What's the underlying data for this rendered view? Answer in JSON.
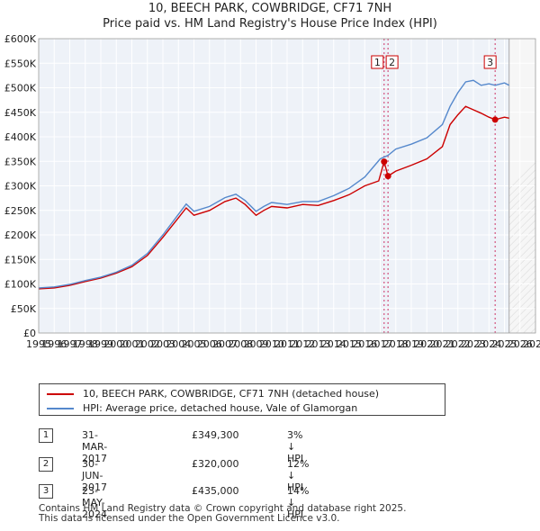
{
  "chart_data": {
    "type": "line",
    "title": "10, BEECH PARK, COWBRIDGE, CF71 7NH",
    "subtitle": "Price paid vs. HM Land Registry's House Price Index (HPI)",
    "x_ticks": [
      "1995",
      "1996",
      "1997",
      "1998",
      "1999",
      "2000",
      "2001",
      "2002",
      "2003",
      "2004",
      "2005",
      "2006",
      "2007",
      "2008",
      "2009",
      "2010",
      "2011",
      "2012",
      "2013",
      "2014",
      "2015",
      "2016",
      "2017",
      "2018",
      "2019",
      "2020",
      "2021",
      "2022",
      "2023",
      "2024",
      "2025",
      "2026",
      "2027"
    ],
    "xlim": [
      1995,
      2027
    ],
    "ylim": [
      0,
      600000
    ],
    "y_ticks": [
      "£0",
      "£50K",
      "£100K",
      "£150K",
      "£200K",
      "£250K",
      "£300K",
      "£350K",
      "£400K",
      "£450K",
      "£500K",
      "£550K",
      "£600K"
    ],
    "series": [
      {
        "name": "10, BEECH PARK, COWBRIDGE, CF71 7NH (detached house)",
        "color": "#cc0000",
        "points": [
          [
            1995.0,
            90000
          ],
          [
            1996.0,
            92000
          ],
          [
            1997.0,
            97000
          ],
          [
            1998.0,
            105000
          ],
          [
            1999.0,
            112000
          ],
          [
            2000.0,
            122000
          ],
          [
            2001.0,
            135000
          ],
          [
            2002.0,
            158000
          ],
          [
            2003.0,
            195000
          ],
          [
            2004.0,
            235000
          ],
          [
            2004.5,
            255000
          ],
          [
            2005.0,
            240000
          ],
          [
            2006.0,
            250000
          ],
          [
            2007.0,
            268000
          ],
          [
            2007.7,
            275000
          ],
          [
            2008.3,
            262000
          ],
          [
            2009.0,
            240000
          ],
          [
            2009.5,
            250000
          ],
          [
            2010.0,
            258000
          ],
          [
            2011.0,
            255000
          ],
          [
            2012.0,
            262000
          ],
          [
            2013.0,
            260000
          ],
          [
            2014.0,
            270000
          ],
          [
            2015.0,
            282000
          ],
          [
            2016.0,
            300000
          ],
          [
            2016.9,
            310000
          ],
          [
            2017.25,
            349300
          ],
          [
            2017.5,
            320000
          ],
          [
            2018.0,
            330000
          ],
          [
            2019.0,
            342000
          ],
          [
            2020.0,
            355000
          ],
          [
            2021.0,
            380000
          ],
          [
            2021.5,
            425000
          ],
          [
            2022.0,
            445000
          ],
          [
            2022.5,
            462000
          ],
          [
            2023.0,
            455000
          ],
          [
            2023.5,
            448000
          ],
          [
            2024.0,
            440000
          ],
          [
            2024.4,
            435000
          ],
          [
            2025.0,
            440000
          ],
          [
            2025.3,
            438000
          ]
        ]
      },
      {
        "name": "HPI: Average price, detached house, Vale of Glamorgan",
        "color": "#5588cc",
        "points": [
          [
            1995.0,
            92000
          ],
          [
            1996.0,
            94000
          ],
          [
            1997.0,
            99000
          ],
          [
            1998.0,
            107000
          ],
          [
            1999.0,
            114000
          ],
          [
            2000.0,
            124000
          ],
          [
            2001.0,
            138000
          ],
          [
            2002.0,
            162000
          ],
          [
            2003.0,
            200000
          ],
          [
            2004.0,
            242000
          ],
          [
            2004.5,
            263000
          ],
          [
            2005.0,
            248000
          ],
          [
            2006.0,
            258000
          ],
          [
            2007.0,
            276000
          ],
          [
            2007.7,
            283000
          ],
          [
            2008.3,
            270000
          ],
          [
            2009.0,
            248000
          ],
          [
            2009.5,
            258000
          ],
          [
            2010.0,
            266000
          ],
          [
            2011.0,
            262000
          ],
          [
            2012.0,
            268000
          ],
          [
            2013.0,
            268000
          ],
          [
            2014.0,
            280000
          ],
          [
            2015.0,
            295000
          ],
          [
            2016.0,
            318000
          ],
          [
            2017.0,
            355000
          ],
          [
            2017.5,
            362000
          ],
          [
            2018.0,
            375000
          ],
          [
            2019.0,
            385000
          ],
          [
            2020.0,
            398000
          ],
          [
            2021.0,
            425000
          ],
          [
            2021.5,
            462000
          ],
          [
            2022.0,
            490000
          ],
          [
            2022.5,
            512000
          ],
          [
            2023.0,
            515000
          ],
          [
            2023.5,
            505000
          ],
          [
            2024.0,
            508000
          ],
          [
            2024.4,
            505000
          ],
          [
            2025.0,
            510000
          ],
          [
            2025.3,
            505000
          ]
        ]
      }
    ],
    "markers": [
      {
        "label": "1",
        "x": 2017.25,
        "y": 349300
      },
      {
        "label": "2",
        "x": 2017.5,
        "y": 320000
      },
      {
        "label": "3",
        "x": 2024.4,
        "y": 435000
      }
    ],
    "forecast_start": 2025.3
  },
  "legend": {
    "red_label": "10, BEECH PARK, COWBRIDGE, CF71 7NH (detached house)",
    "blue_label": "HPI: Average price, detached house, Vale of Glamorgan"
  },
  "transactions": [
    {
      "num": "1",
      "date": "31-MAR-2017",
      "price": "£349,300",
      "hpi": "3% ↓ HPI"
    },
    {
      "num": "2",
      "date": "30-JUN-2017",
      "price": "£320,000",
      "hpi": "12% ↓ HPI"
    },
    {
      "num": "3",
      "date": "23-MAY-2024",
      "price": "£435,000",
      "hpi": "14% ↓ HPI"
    }
  ],
  "footer": {
    "line1": "Contains HM Land Registry data © Crown copyright and database right 2025.",
    "line2": "This data is licensed under the Open Government Licence v3.0."
  }
}
